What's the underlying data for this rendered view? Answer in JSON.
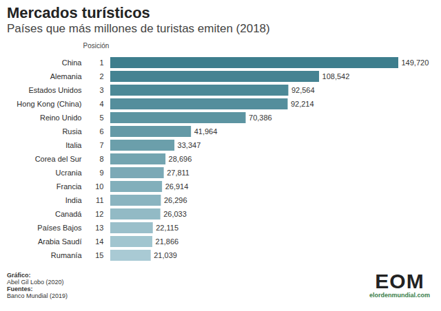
{
  "chart_data": {
    "type": "bar",
    "orientation": "horizontal",
    "title": "Mercados turísticos",
    "subtitle": "Países que más millones de turistas emiten (2018)",
    "position_label": "Posición",
    "positions": [
      1,
      2,
      3,
      4,
      5,
      6,
      7,
      8,
      9,
      10,
      11,
      12,
      13,
      14,
      15
    ],
    "categories": [
      "China",
      "Alemania",
      "Estados Unidos",
      "Hong Kong (China)",
      "Reino Unido",
      "Rusia",
      "Italia",
      "Corea del Sur",
      "Ucrania",
      "Francia",
      "India",
      "Canadá",
      "Países Bajos",
      "Arabia Saudí",
      "Rumanía"
    ],
    "values": [
      149.72,
      108.542,
      92.564,
      92.214,
      70.386,
      41.964,
      33.347,
      28.696,
      27.811,
      26.914,
      26.296,
      26.033,
      22.115,
      21.866,
      21.039
    ],
    "value_labels": [
      "149,720",
      "108,542",
      "92,564",
      "92,214",
      "70,386",
      "41,964",
      "33,347",
      "28,696",
      "27,811",
      "26,914",
      "26,296",
      "26,033",
      "22,115",
      "21,866",
      "21,039"
    ],
    "colors": [
      "#3d7e8d",
      "#458392",
      "#4c8997",
      "#548e9c",
      "#5c94a1",
      "#6499a6",
      "#6b9fab",
      "#73a4b0",
      "#7ba9b6",
      "#82afbb",
      "#8ab4c0",
      "#92bac5",
      "#9abfca",
      "#a1c5cf",
      "#a9cad4"
    ],
    "data_labels": true,
    "tick_labels": "y",
    "credits": {
      "grafico_label": "Gráfico:",
      "grafico": "Abel Gil Lobo (2020)",
      "fuentes_label": "Fuentes:",
      "fuentes": "Banco Mundial (2019)"
    },
    "logo": {
      "text": "EOM",
      "url": "elordenmundial.com"
    }
  }
}
